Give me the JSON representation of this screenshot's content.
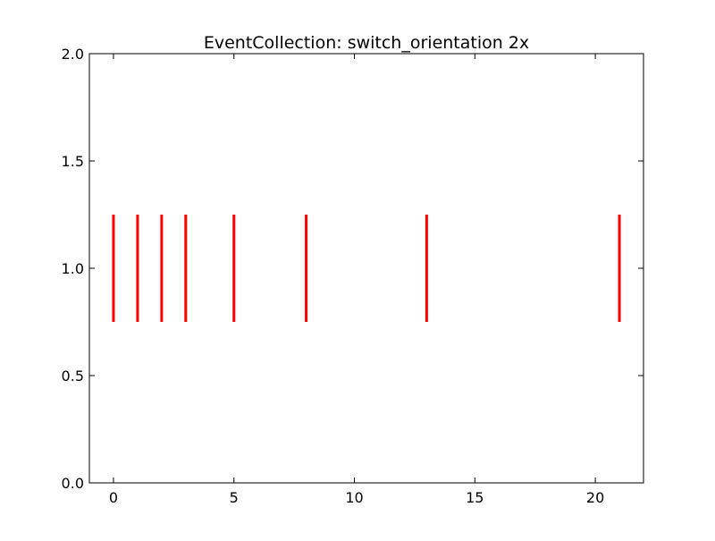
{
  "chart_data": {
    "type": "eventplot",
    "title": "EventCollection: switch_orientation 2x",
    "xlabel": "",
    "ylabel": "",
    "xlim": [
      -1,
      22
    ],
    "ylim": [
      0,
      2
    ],
    "x_ticks": [
      0,
      5,
      10,
      15,
      20
    ],
    "y_ticks": [
      0.0,
      0.5,
      1.0,
      1.5,
      2.0
    ],
    "x_tick_labels": [
      "0",
      "5",
      "10",
      "15",
      "20"
    ],
    "y_tick_labels": [
      "0.0",
      "0.5",
      "1.0",
      "1.5",
      "2.0"
    ],
    "grid": false,
    "series": [
      {
        "color": "#ff0000",
        "line_offset": 1.0,
        "line_length": 0.5,
        "positions": [
          0,
          1,
          2,
          3,
          5,
          8,
          13,
          21
        ]
      }
    ]
  }
}
